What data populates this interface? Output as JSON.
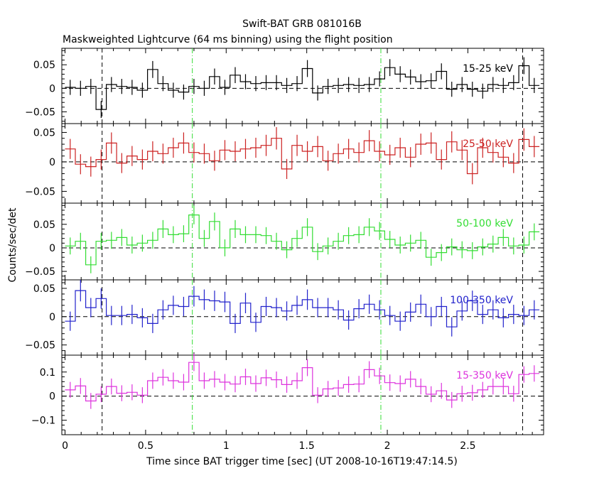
{
  "title": "Swift-BAT GRB 081016B",
  "subtitle": "Maskweighted Lightcurve (64 ms binning) using the flight position",
  "ylabel": "Counts/sec/det",
  "xlabel": "Time since BAT trigger time [sec] (UT 2008-10-16T19:47:14.5)",
  "colors": {
    "black": "#000000",
    "red": "#cc2222",
    "green": "#33dd33",
    "blue": "#2222cc",
    "magenta": "#dd33dd"
  },
  "chart_data": {
    "type": "line",
    "xlim": [
      -0.02,
      2.97
    ],
    "bin_width": 0.064,
    "x_ticks": [
      0,
      0.5,
      1,
      1.5,
      2,
      2.5
    ],
    "x_tick_labels": [
      "0",
      "0.5",
      "1",
      "1.5",
      "2",
      "2.5"
    ],
    "vertical_markers": [
      {
        "x": 0.23,
        "style": "dashed",
        "color": "#000000"
      },
      {
        "x": 0.79,
        "style": "dashdot",
        "color": "#33dd33"
      },
      {
        "x": 1.96,
        "style": "dashdot",
        "color": "#33dd33"
      },
      {
        "x": 2.84,
        "style": "dashed",
        "color": "#000000"
      }
    ],
    "panels": [
      {
        "name": "15-25 keV",
        "color": "#000000",
        "ylim": [
          -0.075,
          0.085
        ],
        "y_ticks": [
          -0.05,
          0,
          0.05
        ],
        "y_tick_labels": [
          "−0.05",
          "0",
          "0.05"
        ],
        "x": [
          0.0,
          0.064,
          0.128,
          0.192,
          0.256,
          0.32,
          0.384,
          0.448,
          0.512,
          0.576,
          0.64,
          0.704,
          0.768,
          0.832,
          0.896,
          0.96,
          1.024,
          1.088,
          1.152,
          1.216,
          1.28,
          1.344,
          1.408,
          1.472,
          1.536,
          1.6,
          1.664,
          1.728,
          1.792,
          1.856,
          1.92,
          1.984,
          2.048,
          2.112,
          2.176,
          2.24,
          2.304,
          2.368,
          2.432,
          2.496,
          2.56,
          2.624,
          2.688,
          2.752,
          2.816,
          2.88
        ],
        "values": [
          0.002,
          0.0,
          0.004,
          -0.045,
          0.008,
          0.004,
          0.002,
          -0.004,
          0.04,
          0.01,
          -0.004,
          -0.008,
          0.004,
          0.0,
          0.025,
          0.002,
          0.028,
          0.014,
          0.01,
          0.012,
          0.012,
          0.006,
          0.01,
          0.042,
          -0.01,
          0.004,
          0.006,
          0.008,
          0.006,
          0.008,
          0.02,
          0.044,
          0.03,
          0.024,
          0.014,
          0.016,
          0.036,
          -0.002,
          0.008,
          -0.002,
          -0.006,
          0.008,
          0.006,
          0.012,
          0.048,
          0.006
        ],
        "errors": [
          0.016,
          0.016,
          0.016,
          0.018,
          0.016,
          0.016,
          0.016,
          0.016,
          0.018,
          0.016,
          0.016,
          0.016,
          0.016,
          0.016,
          0.017,
          0.016,
          0.017,
          0.016,
          0.016,
          0.016,
          0.016,
          0.016,
          0.016,
          0.018,
          0.016,
          0.016,
          0.016,
          0.016,
          0.016,
          0.016,
          0.016,
          0.018,
          0.017,
          0.016,
          0.016,
          0.016,
          0.017,
          0.016,
          0.016,
          0.016,
          0.016,
          0.016,
          0.016,
          0.016,
          0.018,
          0.016
        ]
      },
      {
        "name": "25-50 keV",
        "color": "#cc2222",
        "ylim": [
          -0.07,
          0.065
        ],
        "y_ticks": [
          -0.05,
          0,
          0.05
        ],
        "y_tick_labels": [
          "−0.05",
          "0",
          "0.05"
        ],
        "x": [
          0.0,
          0.064,
          0.128,
          0.192,
          0.256,
          0.32,
          0.384,
          0.448,
          0.512,
          0.576,
          0.64,
          0.704,
          0.768,
          0.832,
          0.896,
          0.96,
          1.024,
          1.088,
          1.152,
          1.216,
          1.28,
          1.344,
          1.408,
          1.472,
          1.536,
          1.6,
          1.664,
          1.728,
          1.792,
          1.856,
          1.92,
          1.984,
          2.048,
          2.112,
          2.176,
          2.24,
          2.304,
          2.368,
          2.432,
          2.496,
          2.56,
          2.624,
          2.688,
          2.752,
          2.816,
          2.88
        ],
        "values": [
          0.022,
          -0.004,
          -0.008,
          0.004,
          0.032,
          -0.002,
          0.01,
          0.004,
          0.018,
          0.014,
          0.024,
          0.032,
          0.016,
          0.014,
          0.002,
          0.02,
          0.018,
          0.022,
          0.024,
          0.028,
          0.04,
          -0.012,
          0.028,
          0.018,
          0.026,
          0.002,
          0.014,
          0.022,
          0.016,
          0.036,
          0.018,
          0.012,
          0.024,
          0.008,
          0.03,
          0.032,
          0.004,
          0.034,
          0.02,
          -0.02,
          0.024,
          0.016,
          0.008,
          -0.002,
          0.038,
          0.026
        ],
        "errors": [
          0.017,
          0.017,
          0.017,
          0.017,
          0.018,
          0.017,
          0.017,
          0.017,
          0.017,
          0.017,
          0.017,
          0.018,
          0.017,
          0.017,
          0.017,
          0.017,
          0.017,
          0.017,
          0.017,
          0.018,
          0.019,
          0.017,
          0.018,
          0.017,
          0.018,
          0.017,
          0.017,
          0.017,
          0.017,
          0.018,
          0.017,
          0.017,
          0.017,
          0.017,
          0.018,
          0.018,
          0.017,
          0.018,
          0.017,
          0.018,
          0.017,
          0.017,
          0.017,
          0.017,
          0.019,
          0.018
        ]
      },
      {
        "name": "50-100 keV",
        "color": "#33dd33",
        "ylim": [
          -0.068,
          0.095
        ],
        "y_ticks": [
          -0.05,
          0,
          0.05
        ],
        "y_tick_labels": [
          "−0.05",
          "0",
          "0.05"
        ],
        "x": [
          0.0,
          0.064,
          0.128,
          0.192,
          0.256,
          0.32,
          0.384,
          0.448,
          0.512,
          0.576,
          0.64,
          0.704,
          0.768,
          0.832,
          0.896,
          0.96,
          1.024,
          1.088,
          1.152,
          1.216,
          1.28,
          1.344,
          1.408,
          1.472,
          1.536,
          1.6,
          1.664,
          1.728,
          1.792,
          1.856,
          1.92,
          1.984,
          2.048,
          2.112,
          2.176,
          2.24,
          2.304,
          2.368,
          2.432,
          2.496,
          2.56,
          2.624,
          2.688,
          2.752,
          2.816,
          2.88
        ],
        "values": [
          0.004,
          0.014,
          -0.036,
          0.014,
          0.016,
          0.022,
          0.006,
          0.01,
          0.016,
          0.04,
          0.028,
          0.03,
          0.07,
          0.02,
          0.056,
          0.0,
          0.04,
          0.028,
          0.028,
          0.026,
          0.014,
          -0.004,
          0.02,
          0.044,
          -0.008,
          0.004,
          0.014,
          0.026,
          0.028,
          0.044,
          0.036,
          0.018,
          0.006,
          0.01,
          0.016,
          -0.02,
          -0.01,
          0.002,
          -0.004,
          -0.006,
          0.002,
          0.008,
          0.022,
          0.004,
          0.006,
          0.034
        ],
        "errors": [
          0.018,
          0.018,
          0.018,
          0.018,
          0.018,
          0.018,
          0.018,
          0.018,
          0.018,
          0.019,
          0.018,
          0.018,
          0.02,
          0.018,
          0.019,
          0.018,
          0.019,
          0.018,
          0.018,
          0.018,
          0.018,
          0.018,
          0.018,
          0.019,
          0.018,
          0.018,
          0.018,
          0.018,
          0.018,
          0.019,
          0.019,
          0.018,
          0.018,
          0.018,
          0.018,
          0.018,
          0.018,
          0.018,
          0.018,
          0.018,
          0.018,
          0.018,
          0.018,
          0.018,
          0.018,
          0.018
        ]
      },
      {
        "name": "100-350 keV",
        "color": "#2222cc",
        "ylim": [
          -0.068,
          0.065
        ],
        "y_ticks": [
          -0.05,
          0,
          0.05
        ],
        "y_tick_labels": [
          "−0.05",
          "0",
          "0.05"
        ],
        "x": [
          0.0,
          0.064,
          0.128,
          0.192,
          0.256,
          0.32,
          0.384,
          0.448,
          0.512,
          0.576,
          0.64,
          0.704,
          0.768,
          0.832,
          0.896,
          0.96,
          1.024,
          1.088,
          1.152,
          1.216,
          1.28,
          1.344,
          1.408,
          1.472,
          1.536,
          1.6,
          1.664,
          1.728,
          1.792,
          1.856,
          1.92,
          1.984,
          2.048,
          2.112,
          2.176,
          2.24,
          2.304,
          2.368,
          2.432,
          2.496,
          2.56,
          2.624,
          2.688,
          2.752,
          2.816,
          2.88
        ],
        "values": [
          -0.008,
          0.046,
          0.016,
          0.032,
          0.002,
          0.002,
          0.004,
          -0.002,
          -0.012,
          0.012,
          0.02,
          0.018,
          0.036,
          0.03,
          0.028,
          0.026,
          -0.012,
          0.024,
          -0.01,
          0.018,
          0.016,
          0.01,
          0.02,
          0.03,
          0.016,
          0.016,
          0.012,
          -0.006,
          0.014,
          0.022,
          0.012,
          0.002,
          -0.008,
          0.008,
          0.022,
          0.0,
          0.018,
          -0.018,
          0.01,
          0.028,
          0.004,
          0.012,
          -0.002,
          0.004,
          0.002,
          0.012
        ],
        "errors": [
          0.017,
          0.019,
          0.017,
          0.018,
          0.017,
          0.017,
          0.017,
          0.017,
          0.017,
          0.017,
          0.017,
          0.017,
          0.018,
          0.018,
          0.018,
          0.018,
          0.017,
          0.018,
          0.017,
          0.017,
          0.017,
          0.017,
          0.017,
          0.018,
          0.017,
          0.017,
          0.017,
          0.017,
          0.017,
          0.017,
          0.017,
          0.017,
          0.017,
          0.017,
          0.017,
          0.017,
          0.017,
          0.017,
          0.017,
          0.018,
          0.017,
          0.017,
          0.017,
          0.017,
          0.017,
          0.017
        ]
      },
      {
        "name": "15-350 keV",
        "color": "#dd33dd",
        "ylim": [
          -0.16,
          0.17
        ],
        "y_ticks": [
          -0.1,
          0,
          0.1
        ],
        "y_tick_labels": [
          "−0.1",
          "0",
          "0.1"
        ],
        "x": [
          0.0,
          0.064,
          0.128,
          0.192,
          0.256,
          0.32,
          0.384,
          0.448,
          0.512,
          0.576,
          0.64,
          0.704,
          0.768,
          0.832,
          0.896,
          0.96,
          1.024,
          1.088,
          1.152,
          1.216,
          1.28,
          1.344,
          1.408,
          1.472,
          1.536,
          1.6,
          1.664,
          1.728,
          1.792,
          1.856,
          1.92,
          1.984,
          2.048,
          2.112,
          2.176,
          2.24,
          2.304,
          2.368,
          2.432,
          2.496,
          2.56,
          2.624,
          2.688,
          2.752,
          2.816,
          2.88
        ],
        "values": [
          0.026,
          0.042,
          -0.02,
          0.008,
          0.04,
          0.012,
          0.016,
          0.004,
          0.064,
          0.078,
          0.064,
          0.058,
          0.14,
          0.064,
          0.07,
          0.058,
          0.05,
          0.08,
          0.052,
          0.076,
          0.068,
          0.048,
          0.064,
          0.118,
          0.004,
          0.03,
          0.034,
          0.048,
          0.05,
          0.11,
          0.084,
          0.056,
          0.052,
          0.07,
          0.04,
          0.008,
          0.022,
          -0.016,
          0.01,
          0.014,
          0.026,
          0.04,
          0.04,
          0.01,
          0.09,
          0.094
        ],
        "errors": [
          0.033,
          0.033,
          0.033,
          0.033,
          0.033,
          0.033,
          0.033,
          0.033,
          0.034,
          0.034,
          0.034,
          0.034,
          0.036,
          0.034,
          0.034,
          0.034,
          0.034,
          0.034,
          0.034,
          0.034,
          0.034,
          0.034,
          0.034,
          0.035,
          0.033,
          0.033,
          0.033,
          0.034,
          0.034,
          0.035,
          0.034,
          0.034,
          0.034,
          0.034,
          0.033,
          0.033,
          0.033,
          0.033,
          0.033,
          0.033,
          0.033,
          0.033,
          0.033,
          0.033,
          0.034,
          0.034
        ]
      }
    ]
  }
}
